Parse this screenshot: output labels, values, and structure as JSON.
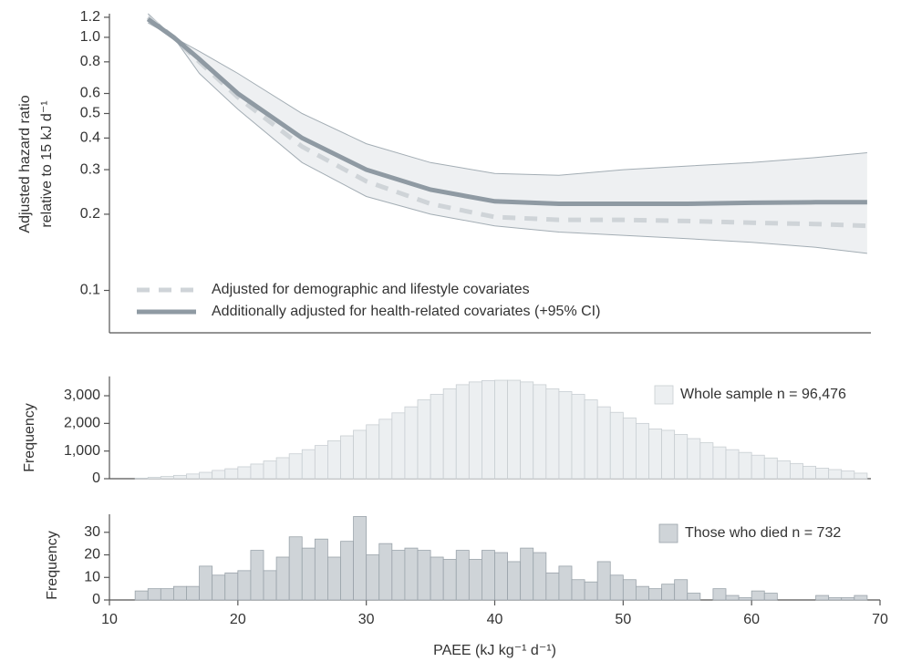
{
  "chart_data": [
    {
      "type": "line",
      "y_label": [
        "Adjusted hazard ratio",
        "relative to 15 kJ d⁻¹"
      ],
      "xlim": [
        10,
        70
      ],
      "log_y": true,
      "ylim": [
        0.068,
        1.24
      ],
      "yticks": [
        0.1,
        0.2,
        0.3,
        0.4,
        0.5,
        0.6,
        0.8,
        {
          "value": 1.0,
          "label": "1.0"
        },
        1.2
      ],
      "x": [
        13,
        15,
        17,
        20,
        25,
        30,
        35,
        40,
        45,
        50,
        55,
        60,
        65,
        69
      ],
      "series": [
        {
          "name": "Adjusted for demographic and lifestyle covariates",
          "color": "#cfd4d8",
          "dashed": true,
          "values": [
            1.2,
            1.0,
            0.8,
            0.58,
            0.37,
            0.27,
            0.22,
            0.195,
            0.19,
            0.19,
            0.188,
            0.185,
            0.183,
            0.18
          ]
        },
        {
          "name": "Additionally adjusted for health-related covariates (+95% CI)",
          "color": "#8f9aa3",
          "dashed": false,
          "values": [
            1.18,
            1.0,
            0.82,
            0.6,
            0.4,
            0.3,
            0.25,
            0.225,
            0.22,
            0.22,
            0.22,
            0.222,
            0.223,
            0.223
          ],
          "ci_lower": [
            1.14,
            1.0,
            0.72,
            0.52,
            0.32,
            0.235,
            0.2,
            0.18,
            0.17,
            0.165,
            0.16,
            0.155,
            0.148,
            0.14
          ],
          "ci_upper": [
            1.24,
            1.0,
            0.88,
            0.72,
            0.5,
            0.38,
            0.32,
            0.29,
            0.285,
            0.3,
            0.31,
            0.32,
            0.335,
            0.35
          ]
        }
      ]
    },
    {
      "type": "histogram",
      "y_label": "Frequency",
      "xlim": [
        10,
        70
      ],
      "ylim": [
        0,
        3700
      ],
      "yticks": [
        0,
        {
          "value": 1000,
          "label": "1,000"
        },
        {
          "value": 2000,
          "label": "2,000"
        },
        {
          "value": 3000,
          "label": "3,000"
        }
      ],
      "bins": [
        12,
        13,
        14,
        15,
        16,
        17,
        18,
        19,
        20,
        21,
        22,
        23,
        24,
        25,
        26,
        27,
        28,
        29,
        30,
        31,
        32,
        33,
        34,
        35,
        36,
        37,
        38,
        39,
        40,
        41,
        42,
        43,
        44,
        45,
        46,
        47,
        48,
        49,
        50,
        51,
        52,
        53,
        54,
        55,
        56,
        57,
        58,
        59,
        60,
        61,
        62,
        63,
        64,
        65,
        66,
        67,
        68,
        69
      ],
      "series": [
        {
          "name": "Whole sample n = 96,476",
          "color": "#eceff1",
          "edge": "#c8ced2",
          "values": [
            20,
            50,
            80,
            120,
            170,
            230,
            300,
            360,
            430,
            530,
            640,
            760,
            900,
            1050,
            1200,
            1370,
            1550,
            1750,
            1950,
            2150,
            2380,
            2600,
            2850,
            3050,
            3250,
            3400,
            3500,
            3550,
            3560,
            3560,
            3500,
            3400,
            3250,
            3150,
            3050,
            2850,
            2600,
            2400,
            2200,
            2000,
            1800,
            1750,
            1600,
            1450,
            1300,
            1150,
            1050,
            950,
            850,
            750,
            650,
            550,
            450,
            380,
            330,
            280,
            200
          ]
        }
      ]
    },
    {
      "type": "histogram",
      "y_label": "Frequency",
      "xlim": [
        10,
        70
      ],
      "ylim": [
        0,
        38
      ],
      "yticks": [
        0,
        10,
        20,
        30
      ],
      "xticks": [
        10,
        20,
        30,
        40,
        50,
        60,
        70
      ],
      "x_label": "PAEE (kJ kg⁻¹ d⁻¹)",
      "bins": [
        12,
        13,
        14,
        15,
        16,
        17,
        18,
        19,
        20,
        21,
        22,
        23,
        24,
        25,
        26,
        27,
        28,
        29,
        30,
        31,
        32,
        33,
        34,
        35,
        36,
        37,
        38,
        39,
        40,
        41,
        42,
        43,
        44,
        45,
        46,
        47,
        48,
        49,
        50,
        51,
        52,
        53,
        54,
        55,
        56,
        57,
        58,
        59,
        60,
        61,
        62,
        63,
        64,
        65,
        66,
        67,
        68,
        69
      ],
      "series": [
        {
          "name": "Those who died n = 732",
          "color": "#cfd4d8",
          "edge": "#9aa3aa",
          "values": [
            4,
            5,
            5,
            6,
            6,
            15,
            11,
            12,
            13,
            22,
            13,
            19,
            28,
            23,
            27,
            19,
            26,
            37,
            20,
            25,
            22,
            23,
            22,
            19,
            18,
            22,
            18,
            22,
            21,
            17,
            23,
            21,
            12,
            15,
            9,
            8,
            17,
            11,
            9,
            6,
            5,
            7,
            9,
            3,
            0,
            5,
            2,
            1,
            4,
            3,
            0,
            0,
            0,
            2,
            1,
            1,
            2
          ]
        }
      ]
    }
  ]
}
